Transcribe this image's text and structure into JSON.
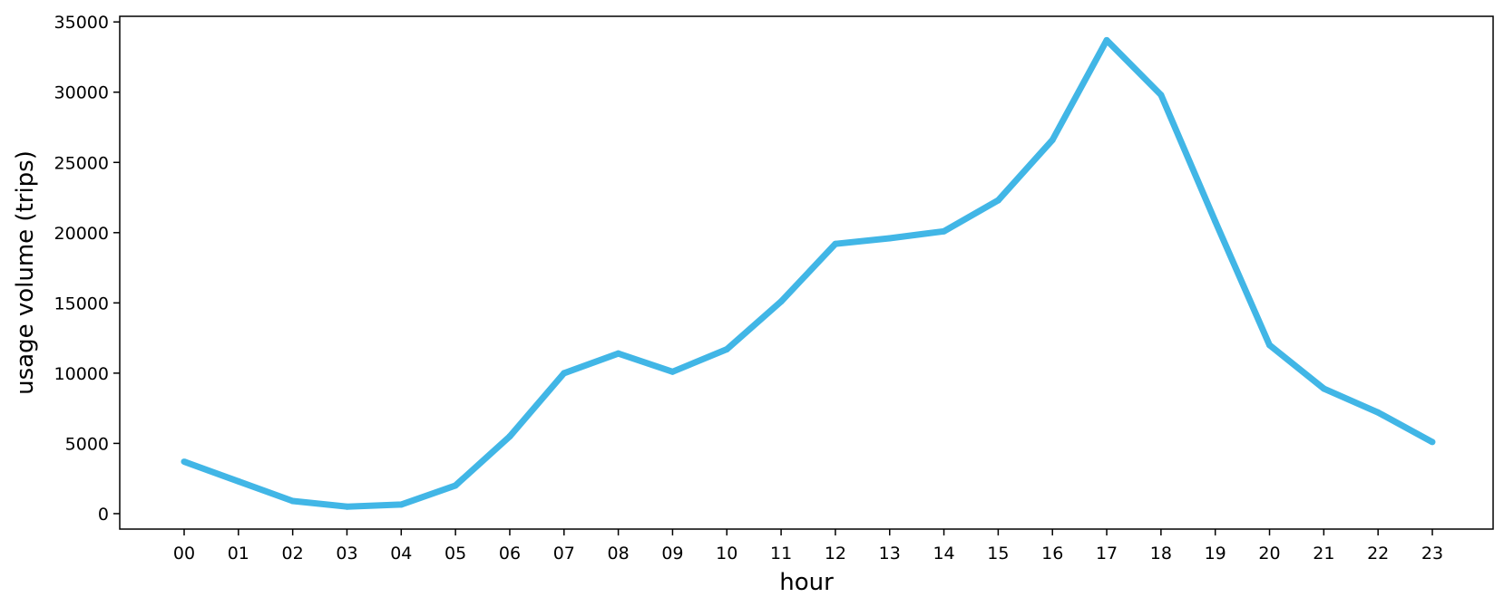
{
  "chart_data": {
    "type": "line",
    "title": "",
    "xlabel": "hour",
    "ylabel": "usage volume (trips)",
    "categories": [
      "00",
      "01",
      "02",
      "03",
      "04",
      "05",
      "06",
      "07",
      "08",
      "09",
      "10",
      "11",
      "12",
      "13",
      "14",
      "15",
      "16",
      "17",
      "18",
      "19",
      "20",
      "21",
      "22",
      "23"
    ],
    "series": [
      {
        "values": [
          3700,
          2300,
          900,
          500,
          650,
          2000,
          5500,
          10000,
          11400,
          10100,
          11700,
          15100,
          19200,
          19600,
          20100,
          22300,
          26600,
          33700,
          29800,
          20800,
          12000,
          8900,
          7200,
          5100
        ]
      }
    ],
    "ylim": [
      -1100,
      35400
    ],
    "yticks": [
      0,
      5000,
      10000,
      15000,
      20000,
      25000,
      30000,
      35000
    ],
    "grid": false,
    "legend": "none",
    "colors": {
      "line": "#41b6e6",
      "axes": "#000000",
      "background": "#ffffff"
    }
  }
}
